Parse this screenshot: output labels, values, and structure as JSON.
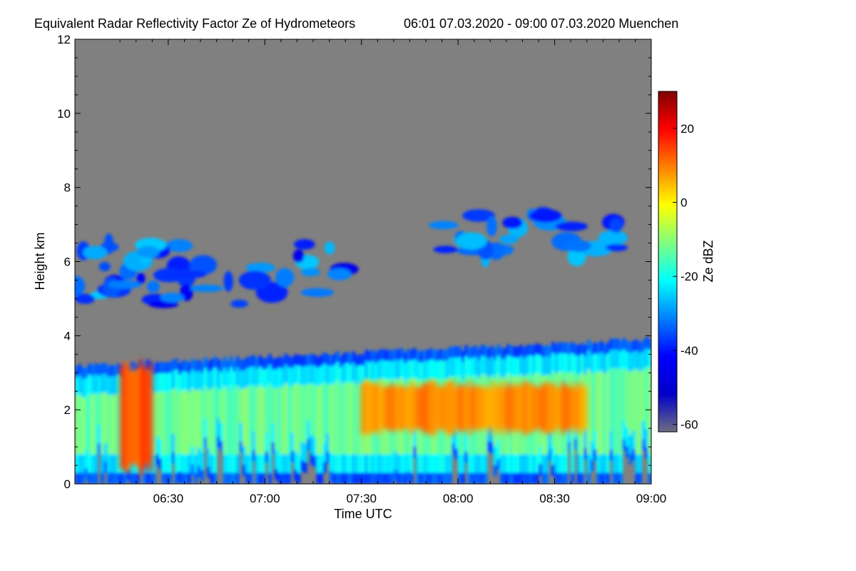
{
  "chart_data": {
    "type": "heatmap",
    "title": "Equivalent Radar Reflectivity Factor Ze of Hydrometeors",
    "subtitle": "06:01 07.03.2020 - 09:00 07.03.2020 Muenchen",
    "xlabel": "Time UTC",
    "ylabel": "Height km",
    "x_ticks": [
      "06:30",
      "07:00",
      "07:30",
      "08:00",
      "08:30",
      "09:00"
    ],
    "x_tick_values_minutes_utc": [
      390,
      420,
      450,
      480,
      510,
      540
    ],
    "xlim_minutes_utc": [
      361,
      540
    ],
    "y_ticks": [
      "0",
      "2",
      "4",
      "6",
      "8",
      "10",
      "12"
    ],
    "y_tick_values_km": [
      0,
      2,
      4,
      6,
      8,
      10,
      12
    ],
    "ylim_km": [
      0,
      12
    ],
    "no_signal_color": "#808080",
    "colorbar": {
      "label": "Ze dBZ",
      "range_dbz": [
        -62,
        30
      ],
      "ticks": [
        "20",
        "0",
        "-20",
        "-40",
        "-60"
      ],
      "tick_values_dbz": [
        20,
        0,
        -20,
        -40,
        -60
      ],
      "colormap": [
        "#6e6e82",
        "#0000c8",
        "#0000ff",
        "#0080ff",
        "#00ffff",
        "#80ff80",
        "#ffff00",
        "#ff8000",
        "#ff0000",
        "#800000"
      ]
    },
    "features": [
      {
        "layer": "upper cloud band",
        "time_start": "06:01",
        "time_end": "07:30",
        "base_km": 4.8,
        "top_km": 6.5,
        "ze_dbz_range": [
          -45,
          -25
        ]
      },
      {
        "layer": "upper cloud patches",
        "time_start": "07:55",
        "time_end": "08:50",
        "base_km": 6.1,
        "top_km": 7.3,
        "ze_dbz_range": [
          -40,
          -25
        ]
      },
      {
        "layer": "precipitating lower cloud",
        "time_start": "06:01",
        "time_end": "09:00",
        "base_km": 0.0,
        "top_km": 3.9,
        "ze_dbz_range": [
          -40,
          15
        ]
      },
      {
        "layer": "core",
        "time_start": "06:15",
        "time_end": "06:25",
        "base_km": 0.2,
        "top_km": 3.4,
        "ze_dbz_range": [
          5,
          18
        ]
      },
      {
        "layer": "core",
        "time_start": "07:30",
        "time_end": "08:40",
        "base_km": 1.3,
        "top_km": 2.8,
        "ze_dbz_range": [
          0,
          12
        ]
      }
    ]
  }
}
